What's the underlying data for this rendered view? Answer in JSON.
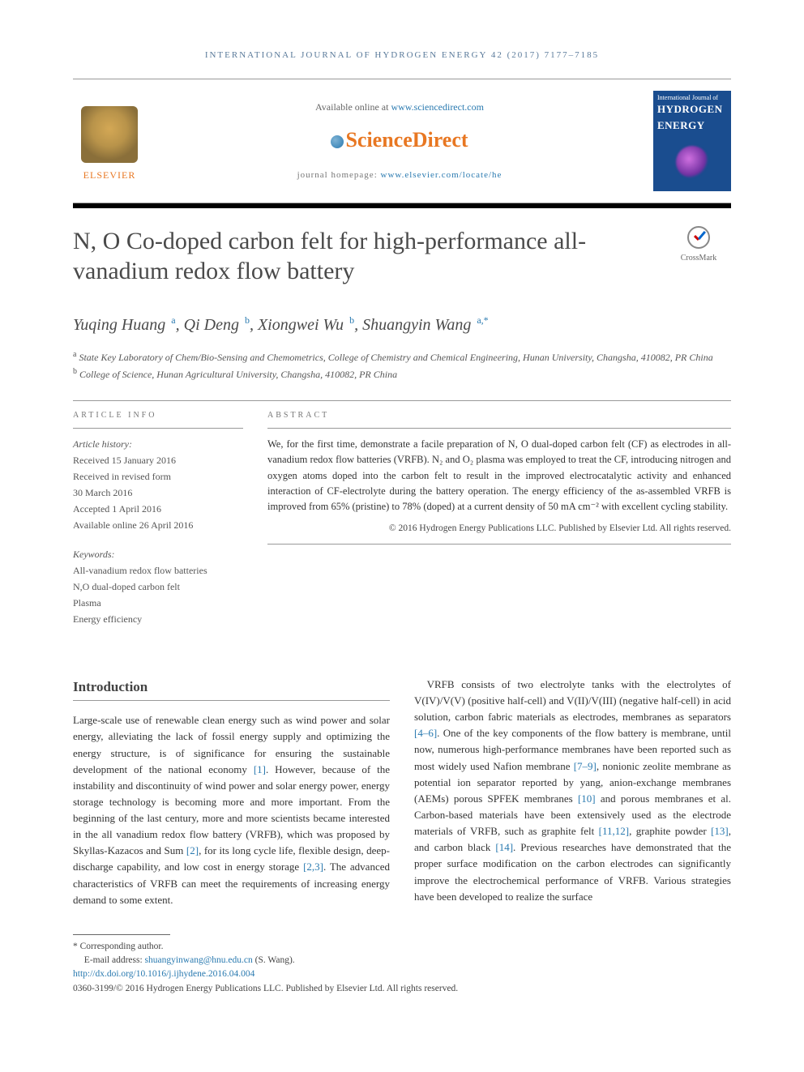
{
  "running_header": "INTERNATIONAL JOURNAL OF HYDROGEN ENERGY 42 (2017) 7177–7185",
  "masthead": {
    "elsevier": "ELSEVIER",
    "available_prefix": "Available online at ",
    "available_link": "www.sciencedirect.com",
    "sd_logo": "ScienceDirect",
    "homepage_label": "journal homepage: ",
    "homepage_link": "www.elsevier.com/locate/he",
    "journal_cover": {
      "line1": "International Journal of",
      "line2": "HYDROGEN",
      "line3": "ENERGY"
    }
  },
  "crossmark_label": "CrossMark",
  "title": "N, O Co-doped carbon felt for high-performance all-vanadium redox flow battery",
  "authors_html_parts": [
    {
      "name": "Yuqing Huang",
      "sup": "a"
    },
    {
      "name": "Qi Deng",
      "sup": "b"
    },
    {
      "name": "Xiongwei Wu",
      "sup": "b"
    },
    {
      "name": "Shuangyin Wang",
      "sup": "a,*"
    }
  ],
  "affiliations": [
    {
      "sup": "a",
      "text": "State Key Laboratory of Chem/Bio-Sensing and Chemometrics, College of Chemistry and Chemical Engineering, Hunan University, Changsha, 410082, PR China"
    },
    {
      "sup": "b",
      "text": "College of Science, Hunan Agricultural University, Changsha, 410082, PR China"
    }
  ],
  "article_info": {
    "label": "ARTICLE INFO",
    "history_label": "Article history:",
    "history": [
      "Received 15 January 2016",
      "Received in revised form",
      "30 March 2016",
      "Accepted 1 April 2016",
      "Available online 26 April 2016"
    ],
    "keywords_label": "Keywords:",
    "keywords": [
      "All-vanadium redox flow batteries",
      "N,O dual-doped carbon felt",
      "Plasma",
      "Energy efficiency"
    ]
  },
  "abstract": {
    "label": "ABSTRACT",
    "text": "We, for the first time, demonstrate a facile preparation of N, O dual-doped carbon felt (CF) as electrodes in all-vanadium redox flow batteries (VRFB). N₂ and O₂ plasma was employed to treat the CF, introducing nitrogen and oxygen atoms doped into the carbon felt to result in the improved electrocatalytic activity and enhanced interaction of CF-electrolyte during the battery operation. The energy efficiency of the as-assembled VRFB is improved from 65% (pristine) to 78% (doped) at a current density of 50 mA cm⁻² with excellent cycling stability.",
    "copyright": "© 2016 Hydrogen Energy Publications LLC. Published by Elsevier Ltd. All rights reserved."
  },
  "body": {
    "intro_heading": "Introduction",
    "col1": "Large-scale use of renewable clean energy such as wind power and solar energy, alleviating the lack of fossil energy supply and optimizing the energy structure, is of significance for ensuring the sustainable development of the national economy [1]. However, because of the instability and discontinuity of wind power and solar energy power, energy storage technology is becoming more and more important. From the beginning of the last century, more and more scientists became interested in the all vanadium redox flow battery (VRFB), which was proposed by Skyllas-Kazacos and Sum [2], for its long cycle life, flexible design, deep-discharge capability, and low cost in energy storage [2,3]. The advanced characteristics of VRFB can meet the requirements of increasing energy demand to some extent.",
    "col2": "VRFB consists of two electrolyte tanks with the electrolytes of V(IV)/V(V) (positive half-cell) and V(II)/V(III) (negative half-cell) in acid solution, carbon fabric materials as electrodes, membranes as separators [4–6]. One of the key components of the flow battery is membrane, until now, numerous high-performance membranes have been reported such as most widely used Nafion membrane [7–9], nonionic zeolite membrane as potential ion separator reported by yang, anion-exchange membranes (AEMs) porous SPFEK membranes [10] and porous membranes et al. Carbon-based materials have been extensively used as the electrode materials of VRFB, such as graphite felt [11,12], graphite powder [13], and carbon black [14]. Previous researches have demonstrated that the proper surface modification on the carbon electrodes can significantly improve the electrochemical performance of VRFB. Various strategies have been developed to realize the surface",
    "refs_col1": [
      "[1]",
      "[2]",
      "[2,3]"
    ],
    "refs_col2": [
      "[4–6]",
      "[7–9]",
      "[10]",
      "[11,12]",
      "[13]",
      "[14]"
    ]
  },
  "footer": {
    "corr": "* Corresponding author.",
    "email_label": "E-mail address: ",
    "email": "shuangyinwang@hnu.edu.cn",
    "email_suffix": " (S. Wang).",
    "doi": "http://dx.doi.org/10.1016/j.ijhydene.2016.04.004",
    "issn_line": "0360-3199/© 2016 Hydrogen Energy Publications LLC. Published by Elsevier Ltd. All rights reserved."
  },
  "colors": {
    "link": "#2a7ab0",
    "accent": "#e87722",
    "text": "#333333"
  }
}
